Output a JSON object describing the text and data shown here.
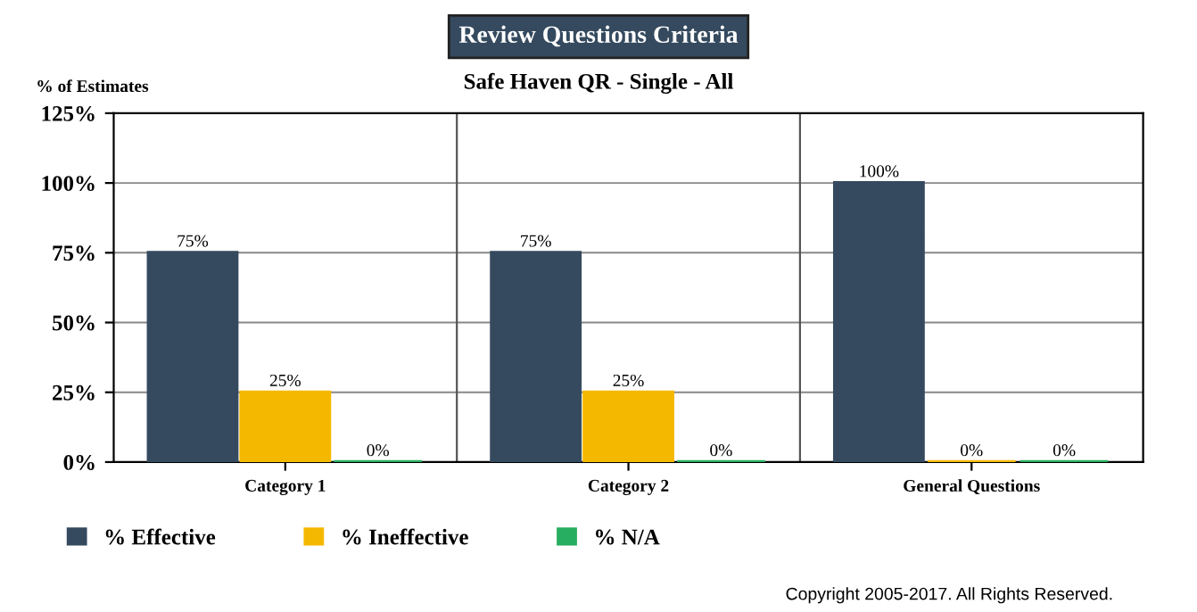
{
  "chart_data": {
    "type": "bar",
    "title": "Review Questions Criteria",
    "subtitle": "Safe Haven QR - Single - All",
    "ylabel": "% of Estimates",
    "categories": [
      "Category 1",
      "Category 2",
      "General Questions"
    ],
    "series": [
      {
        "name": "% Effective",
        "color": "#354a5f",
        "values": [
          75,
          75,
          100
        ],
        "value_labels": [
          "75%",
          "75%",
          "100%"
        ]
      },
      {
        "name": "% Ineffective",
        "color": "#f5b800",
        "values": [
          25,
          25,
          0
        ],
        "value_labels": [
          "25%",
          "25%",
          "0%"
        ]
      },
      {
        "name": "% N/A",
        "color": "#27ae60",
        "values": [
          0,
          0,
          0
        ],
        "value_labels": [
          "0%",
          "0%",
          "0%"
        ]
      }
    ],
    "ylim": [
      0,
      125
    ],
    "yticks": [
      {
        "value": 0,
        "label": "0%"
      },
      {
        "value": 25,
        "label": "25%"
      },
      {
        "value": 50,
        "label": "50%"
      },
      {
        "value": 75,
        "label": "75%"
      },
      {
        "value": 100,
        "label": "100%"
      },
      {
        "value": 125,
        "label": "125%"
      }
    ],
    "grid": "y",
    "legend": "bottom",
    "annotations": [
      "Copyright 2005-2017. All Rights Reserved."
    ]
  }
}
